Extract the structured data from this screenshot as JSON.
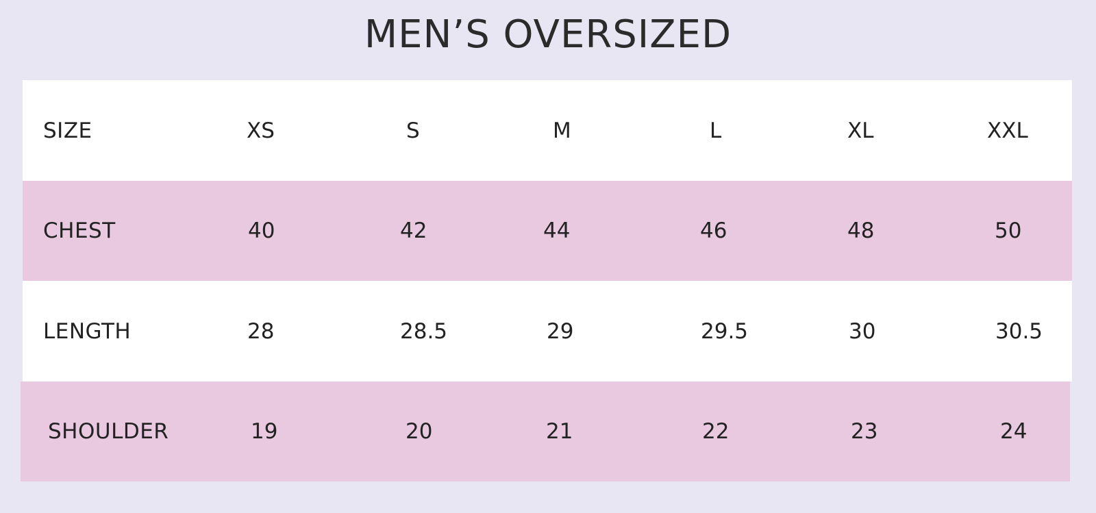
{
  "title": "MEN’S OVERSIZED",
  "colors": {
    "background": "#e9e6f4",
    "row_white": "#ffffff",
    "row_pink": "#e8c9e0",
    "text": "#232323"
  },
  "table": {
    "header": {
      "label": "SIZE",
      "values": [
        "XS",
        "S",
        "M",
        "L",
        "XL",
        "XXL"
      ]
    },
    "rows": [
      {
        "label": "CHEST",
        "values": [
          "40",
          "42",
          "44",
          "46",
          "48",
          "50"
        ]
      },
      {
        "label": "LENGTH",
        "values": [
          "28",
          "28.5",
          "29",
          "29.5",
          "30",
          "30.5"
        ]
      },
      {
        "label": "SHOULDER",
        "values": [
          "19",
          "20",
          "21",
          "22",
          "23",
          "24"
        ]
      }
    ]
  }
}
